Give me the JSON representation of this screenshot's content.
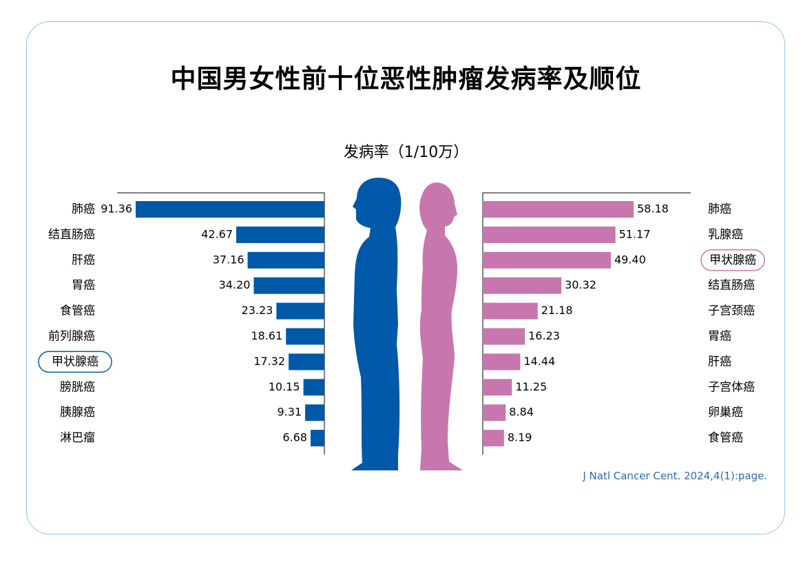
{
  "title": "中国男女性前十位恶性肿瘤发病率及顺位",
  "source": "J Natl Cancer Cent. 2024,4(1):page.",
  "chart_data": [
    {
      "type": "bar",
      "orientation": "horizontal",
      "group": "male",
      "color": "#0059a8",
      "subtitle": "发病率（1/10万）",
      "highlight": "甲状腺癌",
      "categories": [
        "肺癌",
        "结直肠癌",
        "肝癌",
        "胃癌",
        "食管癌",
        "前列腺癌",
        "甲状腺癌",
        "膀胱癌",
        "胰腺癌",
        "淋巴瘤"
      ],
      "values": [
        91.36,
        42.67,
        37.16,
        34.2,
        23.23,
        18.61,
        17.32,
        10.15,
        9.31,
        6.68
      ],
      "labels": [
        "91.36",
        "42.67",
        "37.16",
        "34.20",
        "23.23",
        "18.61",
        "17.32",
        "10.15",
        "9.31",
        "6.68"
      ]
    },
    {
      "type": "bar",
      "orientation": "horizontal",
      "group": "female",
      "color": "#c777ad",
      "highlight": "甲状腺癌",
      "categories": [
        "肺癌",
        "乳腺癌",
        "甲状腺癌",
        "结直肠癌",
        "子宫颈癌",
        "胃癌",
        "肝癌",
        "子宫体癌",
        "卵巢癌",
        "食管癌"
      ],
      "values": [
        58.18,
        51.17,
        49.4,
        30.32,
        21.18,
        16.23,
        14.44,
        11.25,
        8.84,
        8.19
      ],
      "labels": [
        "58.18",
        "51.17",
        "49.40",
        "30.32",
        "21.18",
        "16.23",
        "14.44",
        "11.25",
        "8.84",
        "8.19"
      ]
    }
  ],
  "colors": {
    "male": "#0059a8",
    "female": "#c777ad",
    "frame": "#8fc3e6",
    "source": "#2b6cb0"
  },
  "icons": {
    "male": "male-silhouette-icon",
    "female": "female-silhouette-icon"
  }
}
